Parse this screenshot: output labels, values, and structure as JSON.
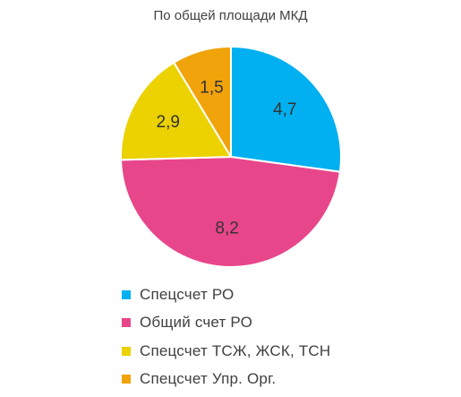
{
  "chart_data": {
    "type": "pie",
    "title": "По общей площади МКД",
    "legend_position": "bottom",
    "slices": [
      {
        "name": "Спецсчет РО",
        "value": 4.7,
        "label": "4,7",
        "color": "#00B0F0"
      },
      {
        "name": "Общий счет РО",
        "value": 8.2,
        "label": "8,2",
        "color": "#E8468A"
      },
      {
        "name": "Спецсчет ТСЖ, ЖСК, ТСН",
        "value": 2.9,
        "label": "2,9",
        "color": "#EBD200"
      },
      {
        "name": "Спецсчет Упр. Орг.",
        "value": 1.5,
        "label": "1,5",
        "color": "#F0A30A"
      }
    ]
  }
}
